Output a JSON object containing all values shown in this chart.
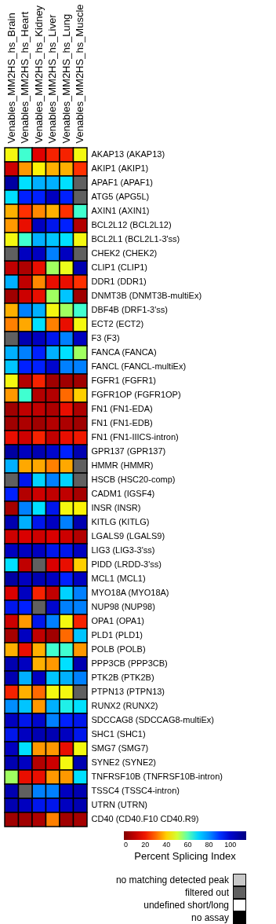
{
  "chart_data": {
    "type": "heatmap",
    "categories": [
      "Venables_MM2HS_hs_Brain",
      "Venables_MM2HS_hs_Heart",
      "Venables_MM2HS_hs_Kidney",
      "Venables_MM2HS_hs_Liver",
      "Venables_MM2HS_hs_Lung",
      "Venables_MM2HS_hs_Muscle"
    ],
    "y_categories": [
      "AKAP13 (AKAP13)",
      "AKIP1 (AKIP1)",
      "APAF1 (APAF1)",
      "ATG5 (APG5L)",
      "AXIN1 (AXIN1)",
      "BCL2L12 (BCL2L12)",
      "BCL2L1 (BCL2L1-3'ss)",
      "CHEK2 (CHEK2)",
      "CLIP1 (CLIP1)",
      "DDR1 (DDR1)",
      "DNMT3B (DNMT3B-multiEx)",
      "DBF4B (DRF1-3'ss)",
      "ECT2 (ECT2)",
      "F3 (F3)",
      "FANCA (FANCA)",
      "FANCL (FANCL-multiEx)",
      "FGFR1 (FGFR1)",
      "FGFR1OP (FGFR1OP)",
      "FN1 (FN1-EDA)",
      "FN1 (FN1-EDB)",
      "FN1 (FN1-IIICS-intron)",
      "GPR137 (GPR137)",
      "HMMR (HMMR)",
      "HSCB (HSC20-comp)",
      "CADM1 (IGSF4)",
      "INSR (INSR)",
      "KITLG (KITLG)",
      "LGALS9 (LGALS9)",
      "LIG3 (LIG3-3'ss)",
      "PIDD (LRDD-3'ss)",
      "MCL1 (MCL1)",
      "MYO18A (MYO18A)",
      "NUP98 (NUP98)",
      "OPA1 (OPA1)",
      "PLD1 (PLD1)",
      "POLB (POLB)",
      "PPP3CB (PPP3CB)",
      "PTK2B (PTK2B)",
      "PTPN13 (PTPN13)",
      "RUNX2 (RUNX2)",
      "SDCCAG8 (SDCCAG8-multiEx)",
      "SHC1 (SHC1)",
      "SMG7 (SMG7)",
      "SYNE2 (SYNE2)",
      "TNFRSF10B (TNFRSF10B-intron)",
      "TSSC4 (TSSC4-intron)",
      "UTRN (UTRN)",
      "CD40 (CD40.F10 CD40.R9)"
    ],
    "cells": [
      [
        45,
        62,
        15,
        22,
        22,
        45
      ],
      [
        12,
        35,
        43,
        38,
        38,
        25
      ],
      [
        108,
        68,
        75,
        75,
        68,
        null
      ],
      [
        68,
        92,
        92,
        102,
        92,
        null
      ],
      [
        38,
        25,
        33,
        38,
        25,
        62
      ],
      [
        35,
        18,
        102,
        95,
        92,
        8
      ],
      [
        45,
        62,
        75,
        72,
        68,
        45
      ],
      [
        null,
        102,
        102,
        82,
        102,
        null
      ],
      [
        10,
        7,
        18,
        55,
        47,
        105
      ],
      [
        75,
        10,
        33,
        18,
        18,
        25
      ],
      [
        5,
        12,
        18,
        55,
        72,
        5
      ],
      [
        38,
        82,
        75,
        45,
        55,
        62
      ],
      [
        32,
        37,
        68,
        32,
        18,
        45
      ],
      [
        null,
        105,
        102,
        95,
        82,
        102
      ],
      [
        75,
        82,
        92,
        75,
        68,
        55
      ],
      [
        72,
        92,
        92,
        100,
        82,
        82
      ],
      [
        45,
        8,
        22,
        5,
        5,
        5
      ],
      [
        35,
        62,
        8,
        8,
        30,
        40
      ],
      [
        5,
        10,
        10,
        7,
        18,
        7
      ],
      [
        5,
        7,
        5,
        8,
        7,
        5
      ],
      [
        18,
        12,
        22,
        10,
        18,
        20
      ],
      [
        108,
        102,
        105,
        100,
        92,
        105
      ],
      [
        75,
        37,
        37,
        32,
        37,
        null
      ],
      [
        null,
        95,
        70,
        82,
        70,
        null
      ],
      [
        92,
        8,
        12,
        10,
        10,
        6
      ],
      [
        6,
        82,
        68,
        95,
        45,
        43
      ],
      [
        105,
        75,
        95,
        102,
        82,
        105
      ],
      [
        12,
        14,
        12,
        14,
        12,
        8
      ],
      [
        102,
        102,
        102,
        95,
        95,
        102
      ],
      [
        68,
        10,
        null,
        14,
        18,
        40
      ],
      [
        108,
        102,
        105,
        102,
        92,
        102
      ],
      [
        14,
        102,
        22,
        10,
        70,
        82
      ],
      [
        95,
        92,
        null,
        100,
        82,
        82
      ],
      [
        12,
        35,
        95,
        82,
        45,
        22
      ],
      [
        6,
        102,
        10,
        5,
        30,
        72
      ],
      [
        38,
        18,
        38,
        62,
        62,
        35
      ],
      [
        105,
        102,
        38,
        35,
        68,
        105
      ],
      [
        105,
        75,
        102,
        72,
        75,
        82
      ],
      [
        22,
        38,
        30,
        45,
        45,
        null
      ],
      [
        80,
        72,
        35,
        75,
        65,
        68
      ],
      [
        102,
        95,
        100,
        82,
        92,
        95
      ],
      [
        95,
        102,
        105,
        105,
        102,
        95
      ],
      [
        102,
        68,
        35,
        35,
        18,
        45
      ],
      [
        105,
        102,
        8,
        12,
        45,
        105
      ],
      [
        55,
        18,
        18,
        35,
        35,
        68
      ],
      [
        105,
        null,
        82,
        82,
        102,
        105
      ],
      [
        105,
        102,
        95,
        95,
        102,
        105
      ],
      [
        5,
        5,
        7,
        32,
        5,
        6
      ]
    ],
    "clabel": "Percent Splicing Index",
    "clim": [
      0,
      115
    ],
    "cticks": [
      0,
      20,
      40,
      60,
      80,
      100
    ],
    "annotations": [
      "no matching detected peak",
      "filtered out",
      "undefined short/long",
      "no assay"
    ]
  }
}
